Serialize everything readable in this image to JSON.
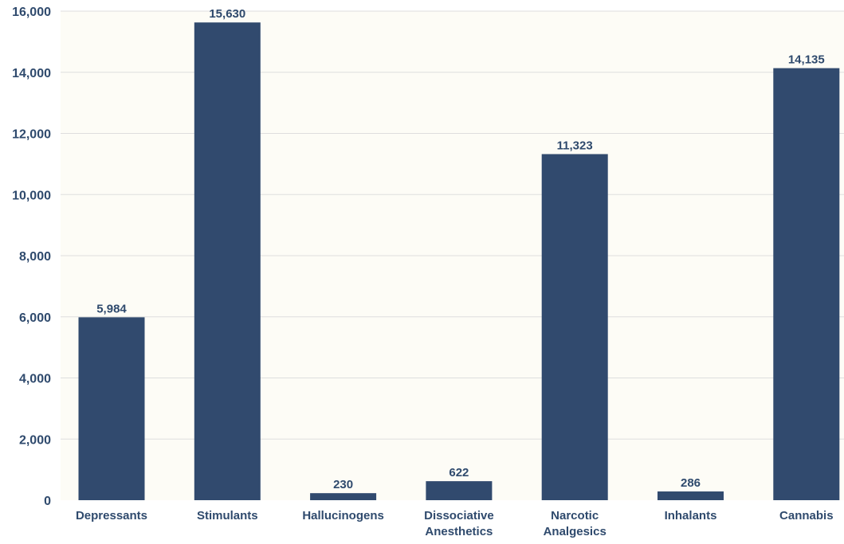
{
  "chart_data": {
    "type": "bar",
    "categories": [
      [
        "Depressants"
      ],
      [
        "Stimulants"
      ],
      [
        "Hallucinogens"
      ],
      [
        "Dissociative",
        "Anesthetics"
      ],
      [
        "Narcotic",
        "Analgesics"
      ],
      [
        "Inhalants"
      ],
      [
        "Cannabis"
      ]
    ],
    "values": [
      5984,
      15630,
      230,
      622,
      11323,
      286,
      14135
    ],
    "value_labels": [
      "5,984",
      "15,630",
      "230",
      "622",
      "11,323",
      "286",
      "14,135"
    ],
    "ylim": [
      0,
      16000
    ],
    "yticks": [
      0,
      2000,
      4000,
      6000,
      8000,
      10000,
      12000,
      14000,
      16000
    ],
    "ytick_labels": [
      "0",
      "2,000",
      "4,000",
      "6,000",
      "8,000",
      "10,000",
      "12,000",
      "14,000",
      "16,000"
    ],
    "grid": true,
    "colors": {
      "bar": "#314a6e",
      "plot_background": "#fdfcf6",
      "text": "#2f4a6d",
      "grid": "#dedede"
    }
  }
}
